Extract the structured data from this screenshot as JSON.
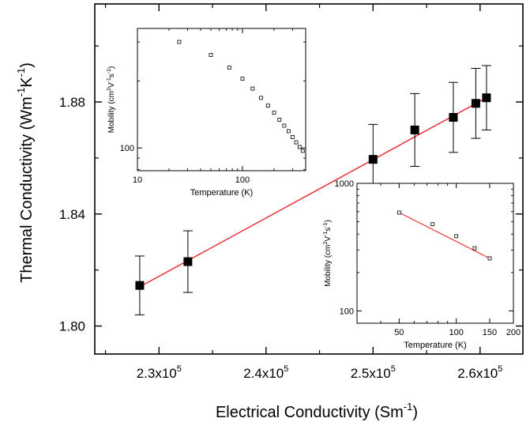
{
  "chart_data": [
    {
      "type": "scatter",
      "xlabel": "Electrical Conductivity (Sm",
      "xlabel_sup": "-1",
      "xlabel_end": ")",
      "ylabel": "Thermal Conductivity (Wm",
      "ylabel_sup1": "-1",
      "ylabel_mid": "K",
      "ylabel_sup2": "-1",
      "ylabel_end": ")",
      "xlim": [
        224000,
        264000
      ],
      "ylim": [
        1.79,
        1.915
      ],
      "x_ticks": [
        {
          "value": 230000,
          "base": "2.3x10",
          "exp": "5"
        },
        {
          "value": 240000,
          "base": "2.4x10",
          "exp": "5"
        },
        {
          "value": 250000,
          "base": "2.5x10",
          "exp": "5"
        },
        {
          "value": 260000,
          "base": "2.6x10",
          "exp": "5"
        }
      ],
      "y_ticks": [
        {
          "value": 1.8,
          "label": "1.80"
        },
        {
          "value": 1.84,
          "label": "1.84"
        },
        {
          "value": 1.88,
          "label": "1.88"
        }
      ],
      "points": [
        {
          "x": 228200,
          "y": 1.8145,
          "err": 0.0105
        },
        {
          "x": 232700,
          "y": 1.823,
          "err": 0.011
        },
        {
          "x": 250000,
          "y": 1.8595,
          "err": 0.0125
        },
        {
          "x": 253900,
          "y": 1.87,
          "err": 0.013
        },
        {
          "x": 257500,
          "y": 1.8745,
          "err": 0.0125
        },
        {
          "x": 259600,
          "y": 1.8795,
          "err": 0.0125
        },
        {
          "x": 260600,
          "y": 1.8815,
          "err": 0.0115
        }
      ],
      "fit": {
        "x": [
          228200,
          260600
        ],
        "y": [
          1.814,
          1.8815
        ],
        "color": "#e8141c"
      },
      "marker_color": "#000000",
      "grid": false
    },
    {
      "type": "scatter",
      "inset": "top-left",
      "scale": "log-log",
      "xlabel": "Temperature (K)",
      "ylabel": "Mobility (cm",
      "ylabel_sup1": "2",
      "ylabel_mid": "V",
      "ylabel_sup2": "-1",
      "ylabel_mid2": "s",
      "ylabel_sup3": "-1",
      "ylabel_end": ")",
      "xlim": [
        10,
        400
      ],
      "ylim": [
        79,
        345
      ],
      "x_ticks": [
        {
          "value": 10,
          "label": "10"
        },
        {
          "value": 100,
          "label": "100"
        }
      ],
      "y_ticks": [
        {
          "value": 100,
          "label": "100"
        }
      ],
      "points": [
        {
          "x": 25,
          "y": 300
        },
        {
          "x": 50,
          "y": 262
        },
        {
          "x": 75,
          "y": 230
        },
        {
          "x": 100,
          "y": 205
        },
        {
          "x": 125,
          "y": 185
        },
        {
          "x": 150,
          "y": 168
        },
        {
          "x": 175,
          "y": 155
        },
        {
          "x": 200,
          "y": 144
        },
        {
          "x": 225,
          "y": 134
        },
        {
          "x": 250,
          "y": 126
        },
        {
          "x": 275,
          "y": 119
        },
        {
          "x": 300,
          "y": 112
        },
        {
          "x": 325,
          "y": 106
        },
        {
          "x": 350,
          "y": 101
        },
        {
          "x": 375,
          "y": 97
        }
      ],
      "grid": false
    },
    {
      "type": "scatter",
      "inset": "bottom-right",
      "scale": "log-log",
      "xlabel": "Temperature (K)",
      "ylabel": "Mobility (cm",
      "ylabel_sup1": "2",
      "ylabel_mid": "V",
      "ylabel_sup2": "-1",
      "ylabel_mid2": "s",
      "ylabel_sup3": "-1",
      "ylabel_end": ")",
      "xlim": [
        30,
        200
      ],
      "ylim": [
        80,
        1000
      ],
      "x_ticks": [
        {
          "value": 50,
          "label": "50"
        },
        {
          "value": 100,
          "label": "100"
        },
        {
          "value": 150,
          "label": "150"
        },
        {
          "value": 200,
          "label": "200"
        }
      ],
      "y_ticks": [
        {
          "value": 100,
          "label": "100"
        },
        {
          "value": 1000,
          "label": "1000"
        }
      ],
      "points": [
        {
          "x": 50,
          "y": 590
        },
        {
          "x": 75,
          "y": 478
        },
        {
          "x": 100,
          "y": 385
        },
        {
          "x": 125,
          "y": 310
        },
        {
          "x": 150,
          "y": 258
        }
      ],
      "fit": {
        "x": [
          50,
          150
        ],
        "y": [
          590,
          258
        ],
        "color": "#e8141c"
      },
      "grid": false
    }
  ]
}
